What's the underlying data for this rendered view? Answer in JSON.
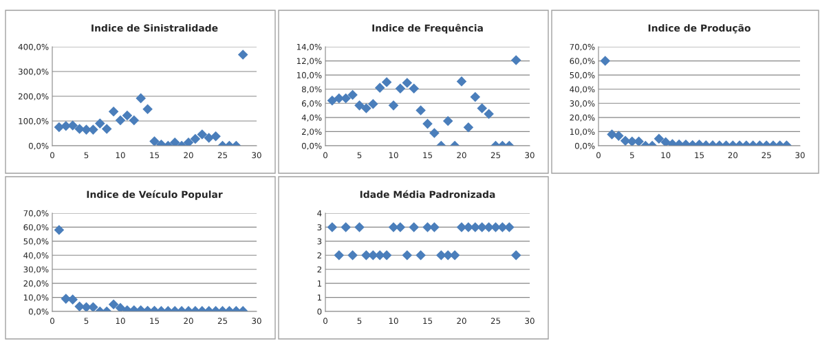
{
  "chart_data": [
    {
      "type": "scatter",
      "title": "Indice de Sinistralidade",
      "marker": "diamond",
      "grid": "y",
      "x": [
        1,
        2,
        3,
        4,
        5,
        6,
        7,
        8,
        9,
        10,
        11,
        12,
        13,
        14,
        15,
        16,
        17,
        18,
        19,
        20,
        21,
        22,
        23,
        24,
        25,
        26,
        27,
        28
      ],
      "series": [
        {
          "color": "#4a7ebb",
          "values": [
            75,
            80,
            82,
            68,
            65,
            65,
            90,
            68,
            138,
            103,
            122,
            103,
            192,
            148,
            18,
            5,
            0,
            13,
            0,
            13,
            28,
            46,
            32,
            38,
            0,
            0,
            0,
            368
          ]
        }
      ],
      "xlim": [
        0,
        30
      ],
      "xticks": [
        0,
        5,
        10,
        15,
        20,
        25,
        30
      ],
      "ylim": [
        0,
        400
      ],
      "yticks": [
        {
          "value": 0,
          "label": "0,0%"
        },
        {
          "value": 100,
          "label": "100,0%"
        },
        {
          "value": 200,
          "label": "200,0%"
        },
        {
          "value": 300,
          "label": "300,0%"
        },
        {
          "value": 400,
          "label": "400,0%"
        }
      ]
    },
    {
      "type": "scatter",
      "title": "Indice de Frequência",
      "marker": "diamond",
      "grid": "y",
      "x": [
        1,
        2,
        3,
        4,
        5,
        6,
        7,
        8,
        9,
        10,
        11,
        12,
        13,
        14,
        15,
        16,
        17,
        18,
        19,
        20,
        21,
        22,
        23,
        24,
        25,
        26,
        27,
        28
      ],
      "series": [
        {
          "color": "#4a7ebb",
          "values": [
            6.4,
            6.7,
            6.7,
            7.2,
            5.7,
            5.3,
            5.9,
            8.2,
            9.0,
            5.7,
            8.1,
            8.9,
            8.1,
            5.0,
            3.1,
            1.8,
            0,
            3.5,
            0,
            9.1,
            2.6,
            6.9,
            5.3,
            4.5,
            0,
            0,
            0,
            12.1
          ]
        }
      ],
      "xlim": [
        0,
        30
      ],
      "xticks": [
        0,
        5,
        10,
        15,
        20,
        25,
        30
      ],
      "ylim": [
        0,
        14
      ],
      "yticks": [
        {
          "value": 0,
          "label": "0,0%"
        },
        {
          "value": 2,
          "label": "2,0%"
        },
        {
          "value": 4,
          "label": "4,0%"
        },
        {
          "value": 6,
          "label": "6,0%"
        },
        {
          "value": 8,
          "label": "8,0%"
        },
        {
          "value": 10,
          "label": "10,0%"
        },
        {
          "value": 12,
          "label": "12,0%"
        },
        {
          "value": 14,
          "label": "14,0%"
        }
      ]
    },
    {
      "type": "scatter",
      "title": "Indice de Produção",
      "marker": "diamond",
      "grid": "y",
      "x": [
        1,
        2,
        3,
        4,
        5,
        6,
        7,
        8,
        9,
        10,
        11,
        12,
        13,
        14,
        15,
        16,
        17,
        18,
        19,
        20,
        21,
        22,
        23,
        24,
        25,
        26,
        27,
        28
      ],
      "series": [
        {
          "color": "#4a7ebb",
          "values": [
            60,
            8,
            7,
            3.5,
            3,
            3,
            0,
            0,
            5,
            2.5,
            1.2,
            1,
            0.8,
            0.5,
            0.8,
            0.3,
            0.3,
            0.2,
            0.2,
            0.2,
            0.2,
            0.2,
            0.2,
            0.2,
            0.2,
            0.2,
            0.2,
            0.2
          ]
        }
      ],
      "xlim": [
        0,
        30
      ],
      "xticks": [
        0,
        5,
        10,
        15,
        20,
        25,
        30
      ],
      "ylim": [
        0,
        70
      ],
      "yticks": [
        {
          "value": 0,
          "label": "0,0%"
        },
        {
          "value": 10,
          "label": "10,0%"
        },
        {
          "value": 20,
          "label": "20,0%"
        },
        {
          "value": 30,
          "label": "30,0%"
        },
        {
          "value": 40,
          "label": "40,0%"
        },
        {
          "value": 50,
          "label": "50,0%"
        },
        {
          "value": 60,
          "label": "60,0%"
        },
        {
          "value": 70,
          "label": "70,0%"
        }
      ]
    },
    {
      "type": "scatter",
      "title": "Indice de Veículo Popular",
      "marker": "diamond",
      "grid": "y",
      "x": [
        1,
        2,
        3,
        4,
        5,
        6,
        7,
        8,
        9,
        10,
        11,
        12,
        13,
        14,
        15,
        16,
        17,
        18,
        19,
        20,
        21,
        22,
        23,
        24,
        25,
        26,
        27,
        28
      ],
      "series": [
        {
          "color": "#4a7ebb",
          "values": [
            58,
            9,
            8.5,
            3.5,
            3,
            3,
            0,
            0,
            5,
            2.5,
            0.8,
            0.8,
            0.8,
            0.5,
            0.5,
            0.3,
            0.3,
            0.3,
            0.3,
            0.3,
            0.3,
            0.3,
            0.3,
            0.3,
            0.3,
            0.3,
            0.3,
            0.3
          ]
        }
      ],
      "xlim": [
        0,
        30
      ],
      "xticks": [
        0,
        5,
        10,
        15,
        20,
        25,
        30
      ],
      "ylim": [
        0,
        70
      ],
      "yticks": [
        {
          "value": 0,
          "label": "0,0%"
        },
        {
          "value": 10,
          "label": "10,0%"
        },
        {
          "value": 20,
          "label": "20,0%"
        },
        {
          "value": 30,
          "label": "30,0%"
        },
        {
          "value": 40,
          "label": "40,0%"
        },
        {
          "value": 50,
          "label": "50,0%"
        },
        {
          "value": 60,
          "label": "60,0%"
        },
        {
          "value": 70,
          "label": "70,0%"
        }
      ]
    },
    {
      "type": "scatter",
      "title": "Idade Média Padronizada",
      "marker": "diamond",
      "grid": "y",
      "x": [
        1,
        2,
        3,
        4,
        5,
        6,
        7,
        8,
        9,
        10,
        11,
        12,
        13,
        14,
        15,
        16,
        17,
        18,
        19,
        20,
        21,
        22,
        23,
        24,
        25,
        26,
        27,
        28
      ],
      "series": [
        {
          "color": "#4a7ebb",
          "values": [
            3,
            2,
            3,
            2,
            3,
            2,
            2,
            2,
            2,
            3,
            3,
            2,
            3,
            2,
            3,
            3,
            2,
            2,
            2,
            3,
            3,
            3,
            3,
            3,
            3,
            3,
            3,
            2
          ]
        }
      ],
      "xlim": [
        0,
        30
      ],
      "xticks": [
        0,
        5,
        10,
        15,
        20,
        25,
        30
      ],
      "ylim": [
        0,
        3.5
      ],
      "yticks": [
        {
          "value": 0,
          "label": "0"
        },
        {
          "value": 0.5,
          "label": "1"
        },
        {
          "value": 1,
          "label": "1"
        },
        {
          "value": 1.5,
          "label": "2"
        },
        {
          "value": 2,
          "label": "2"
        },
        {
          "value": 2.5,
          "label": "3"
        },
        {
          "value": 3,
          "label": "3"
        },
        {
          "value": 3.5,
          "label": "4"
        }
      ]
    }
  ]
}
